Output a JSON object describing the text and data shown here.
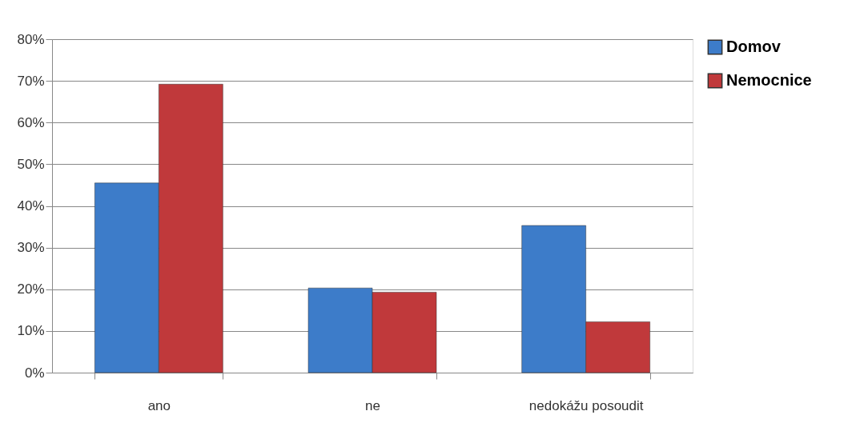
{
  "chart_data": {
    "type": "bar",
    "categories": [
      "ano",
      "ne",
      "nedokážu posoudit"
    ],
    "series": [
      {
        "name": "Domov",
        "color": "#3d7cc9",
        "values": [
          45.5,
          20.3,
          35.3
        ]
      },
      {
        "name": "Nemocnice",
        "color": "#c0393b",
        "values": [
          69.2,
          19.3,
          12.2
        ]
      }
    ],
    "ylim": [
      0,
      80
    ],
    "yticks": [
      {
        "value": 0,
        "label": "0%"
      },
      {
        "value": 10,
        "label": "10%"
      },
      {
        "value": 20,
        "label": "20%"
      },
      {
        "value": 30,
        "label": "30%"
      },
      {
        "value": 40,
        "label": "40%"
      },
      {
        "value": 50,
        "label": "50%"
      },
      {
        "value": 60,
        "label": "60%"
      },
      {
        "value": 70,
        "label": "70%"
      },
      {
        "value": 80,
        "label": "80%"
      }
    ],
    "grid": "y",
    "legend": "right"
  }
}
